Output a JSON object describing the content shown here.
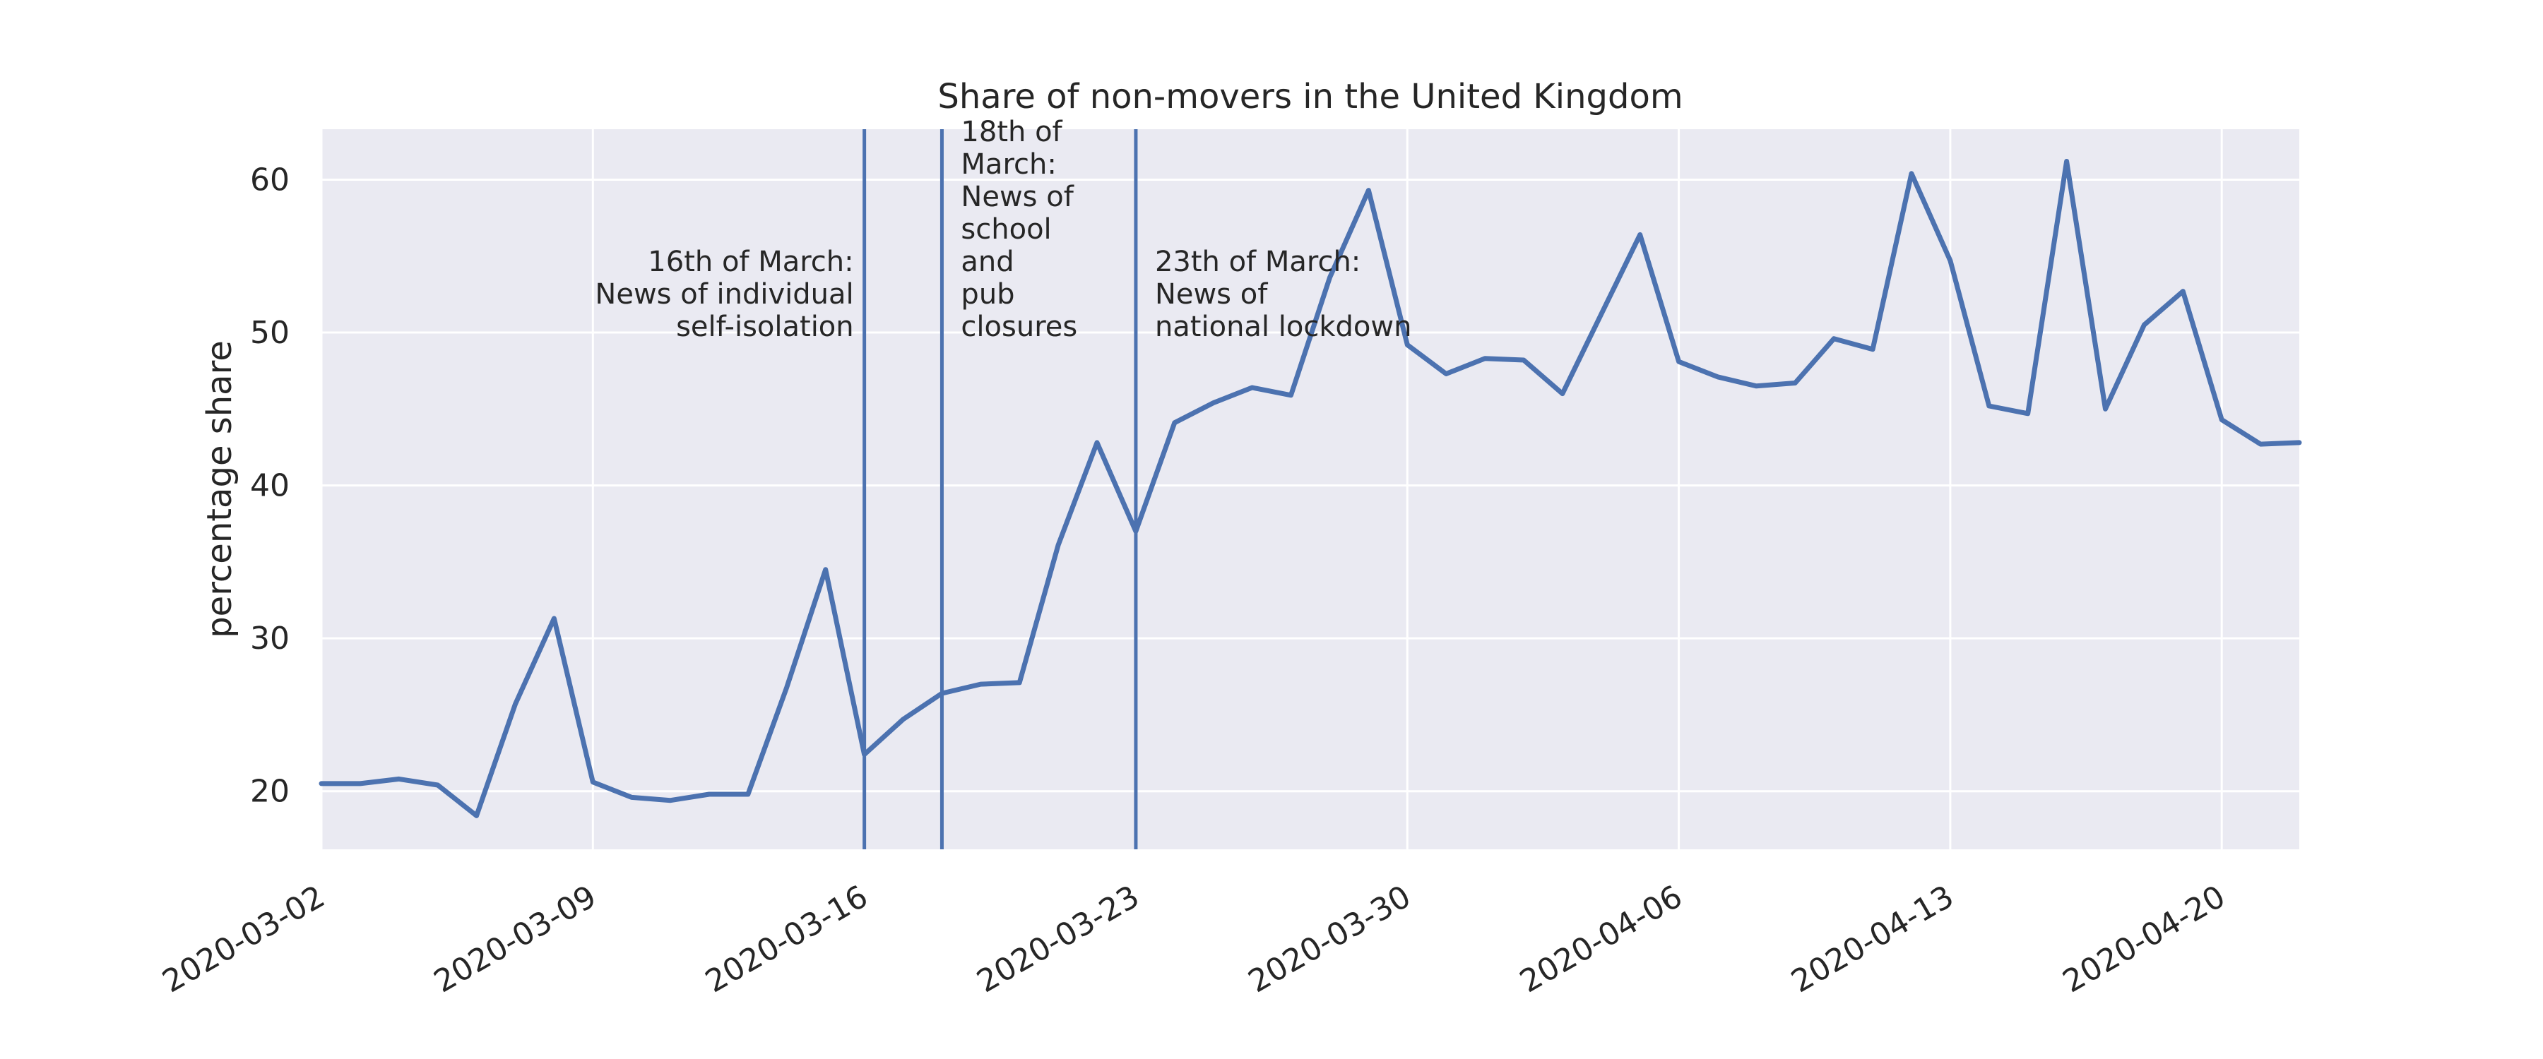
{
  "chart_data": {
    "type": "line",
    "title": "Share of non-movers in the United Kingdom",
    "xlabel": "",
    "ylabel": "percentage share",
    "x_start": "2020-03-02",
    "x_end": "2020-04-22",
    "xticks": [
      "2020-03-02",
      "2020-03-09",
      "2020-03-16",
      "2020-03-23",
      "2020-03-30",
      "2020-04-06",
      "2020-04-13",
      "2020-04-20"
    ],
    "yticks": [
      20,
      30,
      40,
      50,
      60
    ],
    "ylim": [
      16.2,
      63.3
    ],
    "grid": true,
    "series": [
      {
        "name": "",
        "color": "#4c72b0",
        "x": [
          "2020-03-02",
          "2020-03-03",
          "2020-03-04",
          "2020-03-05",
          "2020-03-06",
          "2020-03-07",
          "2020-03-08",
          "2020-03-09",
          "2020-03-10",
          "2020-03-11",
          "2020-03-12",
          "2020-03-13",
          "2020-03-14",
          "2020-03-15",
          "2020-03-16",
          "2020-03-17",
          "2020-03-18",
          "2020-03-19",
          "2020-03-20",
          "2020-03-21",
          "2020-03-22",
          "2020-03-23",
          "2020-03-24",
          "2020-03-25",
          "2020-03-26",
          "2020-03-27",
          "2020-03-28",
          "2020-03-29",
          "2020-03-30",
          "2020-03-31",
          "2020-04-01",
          "2020-04-02",
          "2020-04-03",
          "2020-04-04",
          "2020-04-05",
          "2020-04-06",
          "2020-04-07",
          "2020-04-08",
          "2020-04-09",
          "2020-04-10",
          "2020-04-11",
          "2020-04-12",
          "2020-04-13",
          "2020-04-14",
          "2020-04-15",
          "2020-04-16",
          "2020-04-17",
          "2020-04-18",
          "2020-04-19",
          "2020-04-20",
          "2020-04-21",
          "2020-04-22"
        ],
        "values": [
          20.5,
          20.5,
          20.8,
          20.4,
          18.4,
          25.7,
          31.3,
          20.6,
          19.6,
          19.4,
          19.8,
          19.8,
          26.8,
          34.5,
          22.4,
          24.7,
          26.4,
          27.0,
          27.1,
          36.1,
          42.8,
          37.0,
          44.1,
          45.4,
          46.4,
          45.9,
          53.6,
          59.3,
          49.2,
          47.3,
          48.3,
          48.2,
          46.0,
          51.2,
          56.4,
          48.1,
          47.1,
          46.5,
          46.7,
          49.6,
          48.9,
          60.4,
          54.7,
          45.2,
          44.7,
          61.2,
          45.0,
          50.5,
          52.7,
          44.3,
          42.7,
          42.8
        ]
      }
    ],
    "vlines": [
      {
        "x": "2020-03-16",
        "label_lines": [
          "16th of March:",
          "News of individual",
          "self-isolation"
        ],
        "align": "right"
      },
      {
        "x": "2020-03-18",
        "label_lines": [
          "18th of",
          "March:",
          "News of",
          "school",
          "and",
          "pub",
          "closures"
        ],
        "align": "left"
      },
      {
        "x": "2020-03-23",
        "label_lines": [
          "23th of March:",
          "News of",
          "national lockdown"
        ],
        "align": "left"
      }
    ],
    "colors": {
      "background": "#eaeaf2",
      "grid": "#ffffff",
      "line": "#4c72b0",
      "text": "#262626"
    }
  }
}
